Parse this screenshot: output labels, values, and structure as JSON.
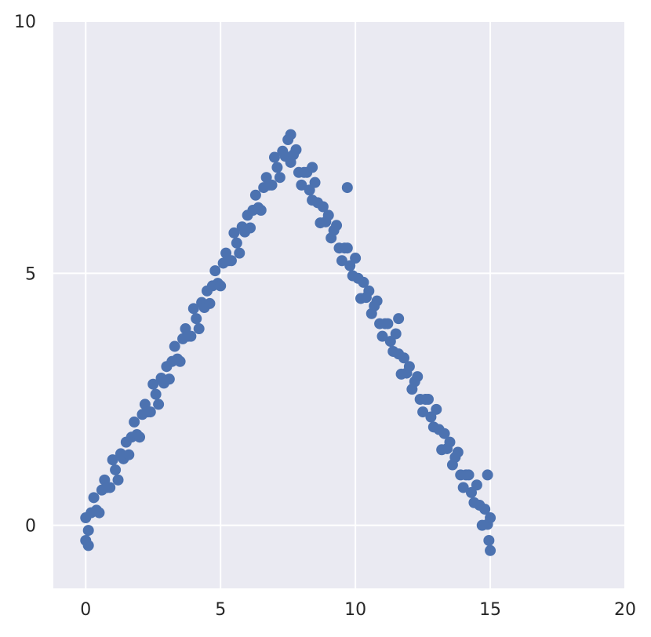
{
  "chart_data": {
    "type": "scatter",
    "title": "",
    "xlabel": "",
    "ylabel": "",
    "xlim": [
      -1.2,
      20
    ],
    "ylim": [
      -1.25,
      10
    ],
    "xticks": [
      0,
      5,
      10,
      15,
      20
    ],
    "yticks": [
      0,
      5,
      10
    ],
    "xtick_labels": [
      "0",
      "5",
      "10",
      "15",
      "20"
    ],
    "ytick_labels": [
      "0",
      "5",
      "10"
    ],
    "grid": true,
    "background": "#eaeaf2",
    "grid_color": "#ffffff",
    "marker_color": "#4c72b0",
    "points": [
      [
        0.0,
        0.15
      ],
      [
        0.1,
        -0.1
      ],
      [
        0.2,
        0.25
      ],
      [
        0.3,
        0.55
      ],
      [
        0.4,
        0.3
      ],
      [
        0.5,
        0.25
      ],
      [
        0.6,
        0.7
      ],
      [
        0.7,
        0.9
      ],
      [
        0.8,
        0.75
      ],
      [
        0.9,
        0.75
      ],
      [
        1.0,
        1.3
      ],
      [
        1.1,
        1.1
      ],
      [
        1.2,
        0.9
      ],
      [
        1.3,
        1.42
      ],
      [
        1.4,
        1.32
      ],
      [
        1.5,
        1.65
      ],
      [
        1.6,
        1.4
      ],
      [
        1.7,
        1.75
      ],
      [
        1.8,
        2.05
      ],
      [
        1.9,
        1.8
      ],
      [
        2.0,
        1.75
      ],
      [
        2.1,
        2.2
      ],
      [
        2.2,
        2.4
      ],
      [
        2.3,
        2.25
      ],
      [
        2.4,
        2.25
      ],
      [
        2.5,
        2.8
      ],
      [
        2.6,
        2.6
      ],
      [
        2.7,
        2.4
      ],
      [
        2.8,
        2.92
      ],
      [
        2.9,
        2.82
      ],
      [
        3.0,
        3.15
      ],
      [
        3.1,
        2.9
      ],
      [
        3.2,
        3.25
      ],
      [
        3.3,
        3.55
      ],
      [
        3.4,
        3.3
      ],
      [
        3.5,
        3.25
      ],
      [
        3.6,
        3.7
      ],
      [
        3.7,
        3.9
      ],
      [
        3.8,
        3.75
      ],
      [
        3.9,
        3.75
      ],
      [
        4.0,
        4.3
      ],
      [
        4.1,
        4.1
      ],
      [
        4.2,
        3.9
      ],
      [
        4.3,
        4.42
      ],
      [
        4.4,
        4.32
      ],
      [
        4.5,
        4.65
      ],
      [
        4.6,
        4.4
      ],
      [
        4.7,
        4.75
      ],
      [
        4.8,
        5.05
      ],
      [
        4.9,
        4.8
      ],
      [
        5.0,
        4.75
      ],
      [
        5.1,
        5.2
      ],
      [
        5.2,
        5.4
      ],
      [
        5.3,
        5.25
      ],
      [
        5.4,
        5.25
      ],
      [
        5.5,
        5.8
      ],
      [
        5.6,
        5.6
      ],
      [
        5.7,
        5.4
      ],
      [
        5.8,
        5.92
      ],
      [
        5.9,
        5.82
      ],
      [
        6.0,
        6.15
      ],
      [
        6.1,
        5.9
      ],
      [
        6.2,
        6.25
      ],
      [
        6.3,
        6.55
      ],
      [
        6.4,
        6.3
      ],
      [
        6.5,
        6.25
      ],
      [
        6.6,
        6.7
      ],
      [
        6.7,
        6.9
      ],
      [
        6.8,
        6.75
      ],
      [
        6.9,
        6.75
      ],
      [
        7.0,
        7.3
      ],
      [
        7.1,
        7.1
      ],
      [
        7.2,
        6.9
      ],
      [
        7.3,
        7.42
      ],
      [
        7.4,
        7.32
      ],
      [
        7.5,
        7.65
      ],
      [
        7.6,
        7.2
      ],
      [
        7.7,
        7.35
      ],
      [
        7.8,
        7.45
      ],
      [
        7.9,
        7.0
      ],
      [
        8.0,
        6.75
      ],
      [
        8.1,
        7.0
      ],
      [
        8.2,
        7.0
      ],
      [
        8.3,
        6.65
      ],
      [
        8.4,
        6.45
      ],
      [
        8.5,
        6.8
      ],
      [
        8.6,
        6.4
      ],
      [
        8.7,
        6.0
      ],
      [
        8.8,
        6.32
      ],
      [
        8.9,
        6.02
      ],
      [
        9.0,
        6.15
      ],
      [
        9.1,
        5.7
      ],
      [
        9.2,
        5.85
      ],
      [
        9.3,
        5.95
      ],
      [
        9.4,
        5.5
      ],
      [
        9.5,
        5.25
      ],
      [
        9.6,
        5.5
      ],
      [
        9.7,
        5.5
      ],
      [
        9.8,
        5.15
      ],
      [
        9.9,
        4.95
      ],
      [
        10.0,
        5.3
      ],
      [
        10.1,
        4.9
      ],
      [
        10.2,
        4.5
      ],
      [
        10.3,
        4.82
      ],
      [
        10.4,
        4.52
      ],
      [
        10.5,
        4.65
      ],
      [
        10.6,
        4.2
      ],
      [
        10.7,
        4.35
      ],
      [
        10.8,
        4.45
      ],
      [
        10.9,
        4.0
      ],
      [
        11.0,
        3.75
      ],
      [
        11.1,
        4.0
      ],
      [
        11.2,
        4.0
      ],
      [
        11.3,
        3.65
      ],
      [
        11.4,
        3.45
      ],
      [
        11.5,
        3.8
      ],
      [
        11.6,
        3.4
      ],
      [
        11.7,
        3.0
      ],
      [
        11.8,
        3.32
      ],
      [
        11.9,
        3.02
      ],
      [
        12.0,
        3.15
      ],
      [
        12.1,
        2.7
      ],
      [
        12.2,
        2.85
      ],
      [
        12.3,
        2.95
      ],
      [
        12.4,
        2.5
      ],
      [
        12.5,
        2.25
      ],
      [
        12.6,
        2.5
      ],
      [
        12.7,
        2.5
      ],
      [
        12.8,
        2.15
      ],
      [
        12.9,
        1.95
      ],
      [
        13.0,
        2.3
      ],
      [
        13.1,
        1.9
      ],
      [
        13.2,
        1.5
      ],
      [
        13.3,
        1.82
      ],
      [
        13.4,
        1.52
      ],
      [
        13.5,
        1.65
      ],
      [
        13.6,
        1.2
      ],
      [
        13.7,
        1.35
      ],
      [
        13.8,
        1.45
      ],
      [
        13.9,
        1.0
      ],
      [
        14.0,
        0.75
      ],
      [
        14.1,
        1.0
      ],
      [
        14.2,
        1.0
      ],
      [
        14.3,
        0.65
      ],
      [
        14.4,
        0.45
      ],
      [
        14.5,
        0.8
      ],
      [
        14.6,
        0.4
      ],
      [
        14.7,
        0.0
      ],
      [
        14.8,
        0.32
      ],
      [
        14.9,
        0.02
      ],
      [
        15.0,
        0.15
      ],
      [
        0.1,
        -0.4
      ],
      [
        0.0,
        -0.3
      ],
      [
        15.0,
        -0.5
      ],
      [
        14.9,
        1.0
      ],
      [
        14.95,
        -0.3
      ],
      [
        9.7,
        6.7
      ],
      [
        7.6,
        7.75
      ],
      [
        8.4,
        7.1
      ],
      [
        11.6,
        4.1
      ]
    ]
  }
}
